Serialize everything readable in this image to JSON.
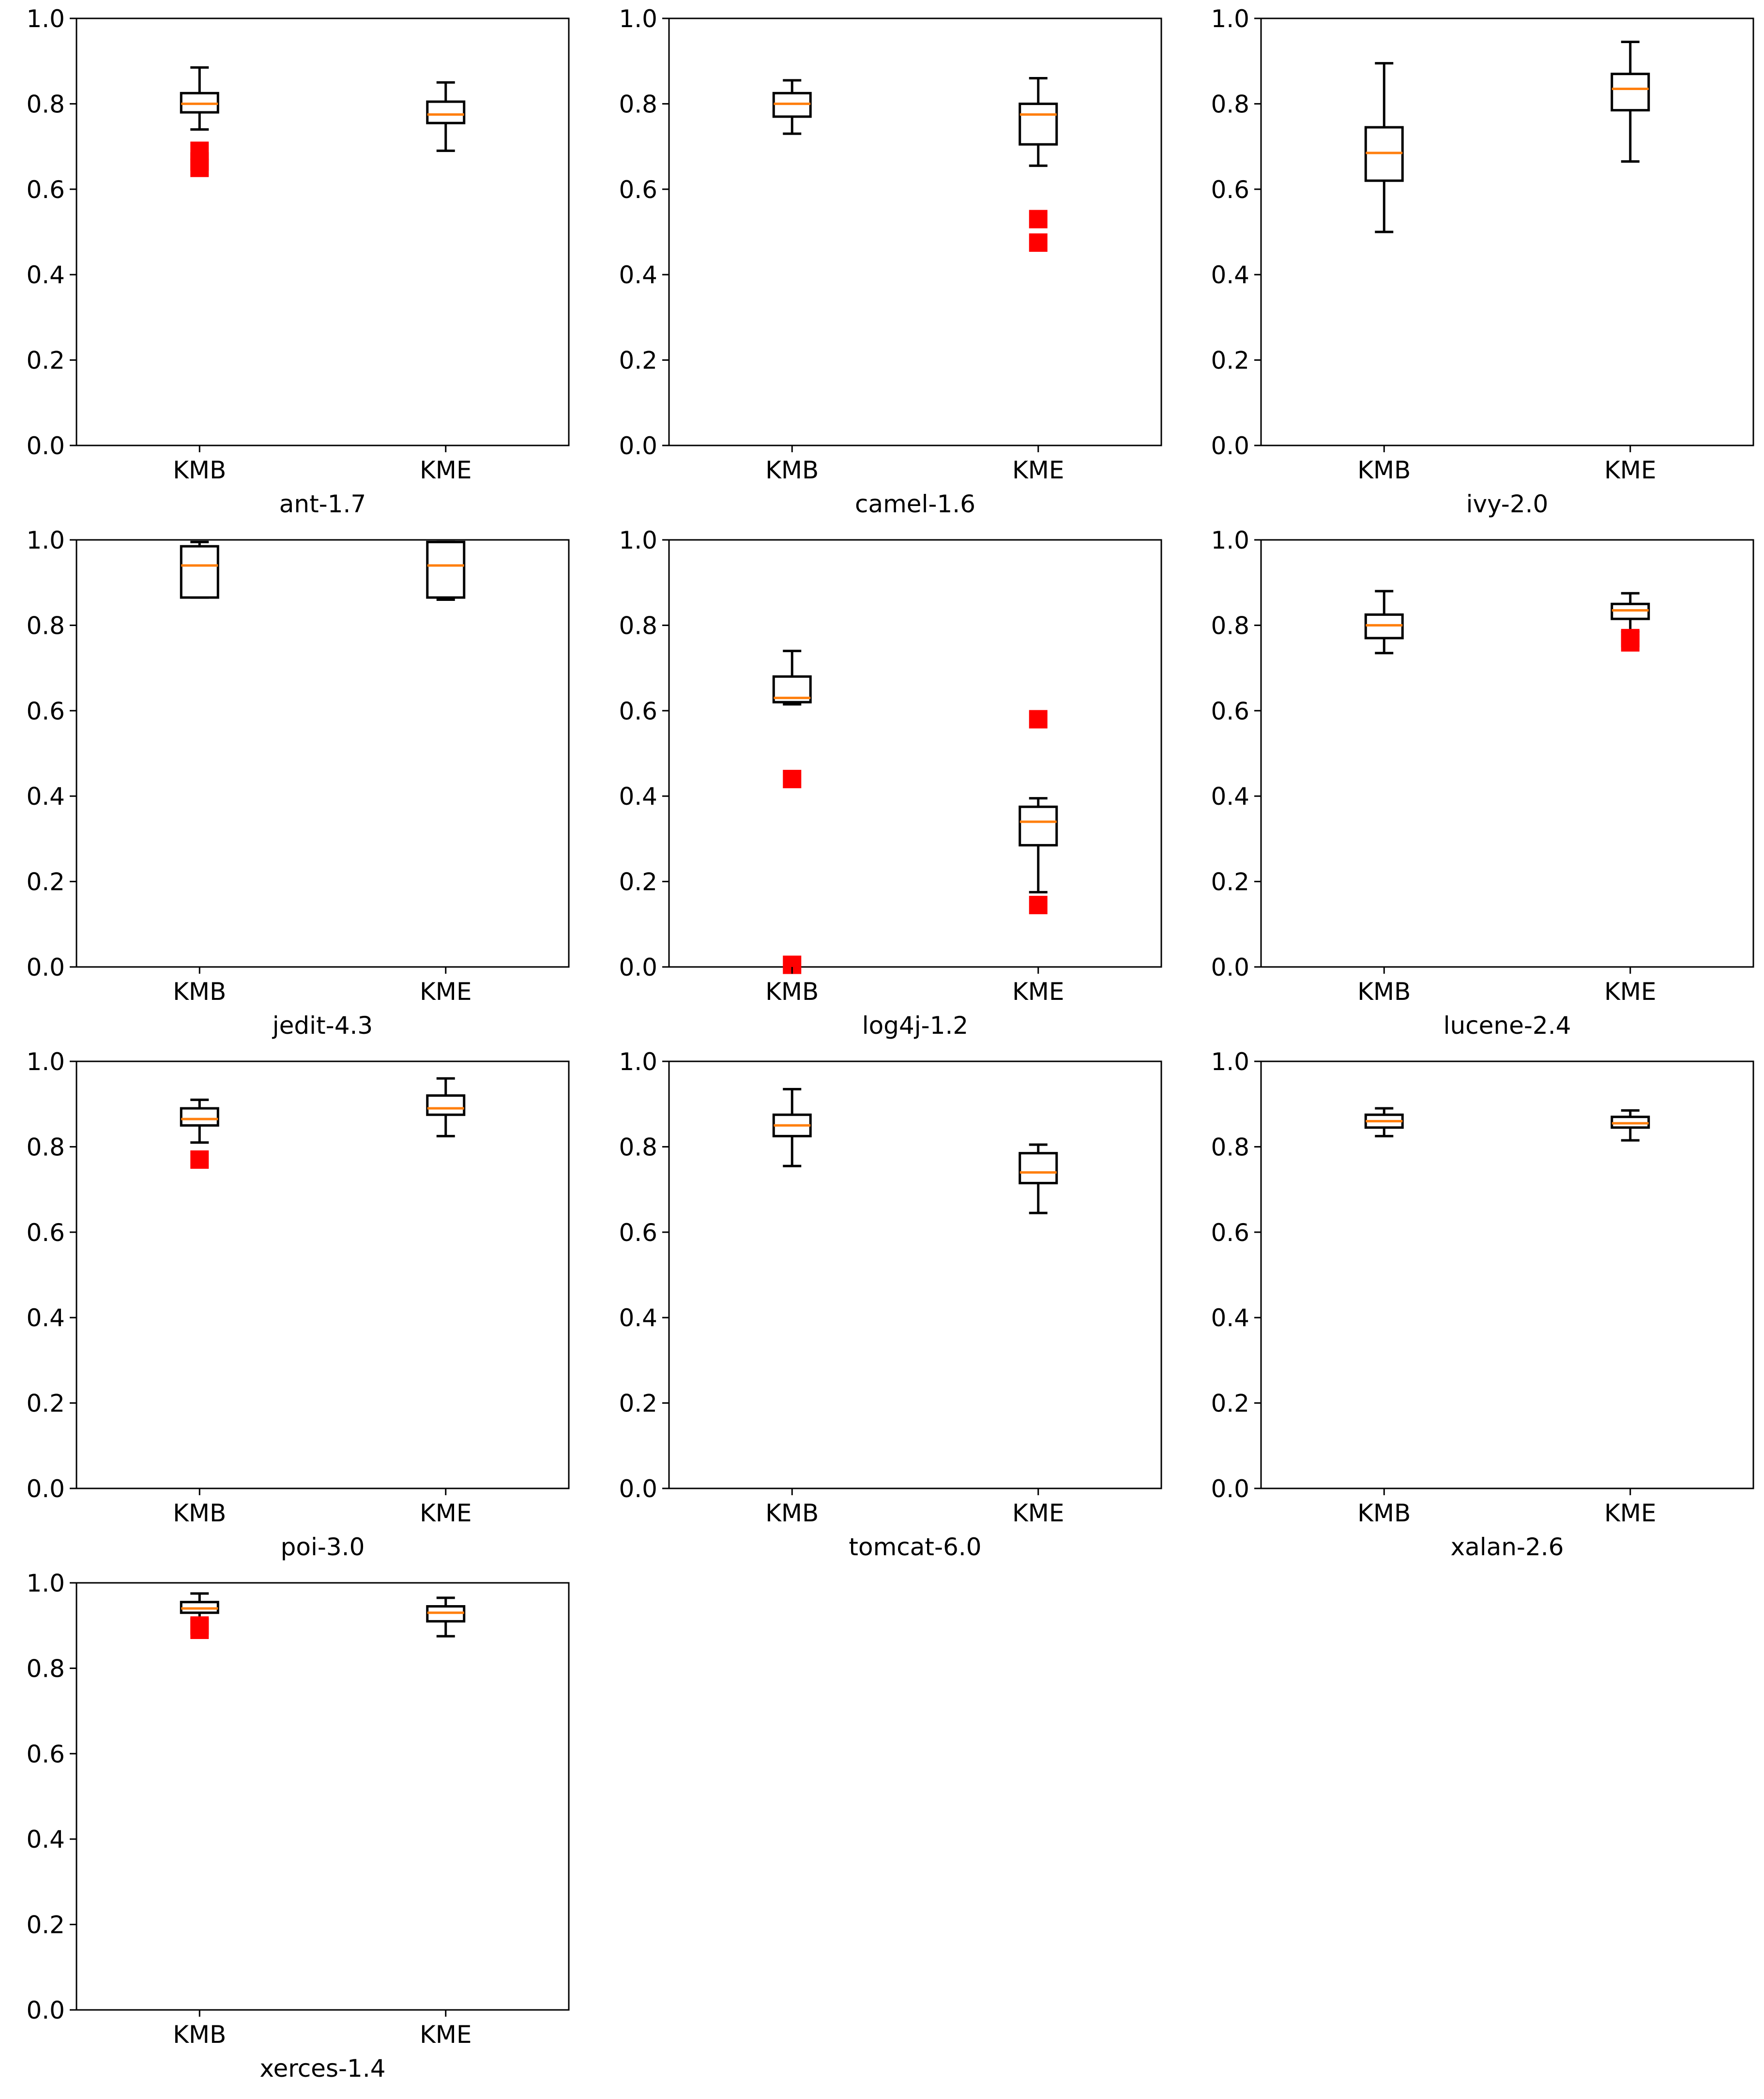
{
  "colors": {
    "box": "#000000",
    "median": "#ff7f0e",
    "outlier": "#ff0000",
    "frame": "#000000",
    "background": "#ffffff"
  },
  "chart_data": [
    {
      "type": "box",
      "title": "ant-1.7",
      "ylim": [
        0,
        1
      ],
      "yticks": [
        "0.0",
        "0.2",
        "0.4",
        "0.6",
        "0.8",
        "1.0"
      ],
      "categories": [
        "KMB",
        "KME"
      ],
      "boxes": [
        {
          "name": "KMB",
          "whislo": 0.74,
          "q1": 0.78,
          "med": 0.8,
          "q3": 0.825,
          "whishi": 0.885,
          "fliers": [
            0.69,
            0.665,
            0.65
          ]
        },
        {
          "name": "KME",
          "whislo": 0.69,
          "q1": 0.755,
          "med": 0.775,
          "q3": 0.805,
          "whishi": 0.85,
          "fliers": []
        }
      ]
    },
    {
      "type": "box",
      "title": "camel-1.6",
      "ylim": [
        0,
        1
      ],
      "yticks": [
        "0.0",
        "0.2",
        "0.4",
        "0.6",
        "0.8",
        "1.0"
      ],
      "categories": [
        "KMB",
        "KME"
      ],
      "boxes": [
        {
          "name": "KMB",
          "whislo": 0.73,
          "q1": 0.77,
          "med": 0.8,
          "q3": 0.825,
          "whishi": 0.855,
          "fliers": []
        },
        {
          "name": "KME",
          "whislo": 0.655,
          "q1": 0.705,
          "med": 0.775,
          "q3": 0.8,
          "whishi": 0.86,
          "fliers": [
            0.53,
            0.475
          ]
        }
      ]
    },
    {
      "type": "box",
      "title": "ivy-2.0",
      "ylim": [
        0,
        1
      ],
      "yticks": [
        "0.0",
        "0.2",
        "0.4",
        "0.6",
        "0.8",
        "1.0"
      ],
      "categories": [
        "KMB",
        "KME"
      ],
      "boxes": [
        {
          "name": "KMB",
          "whislo": 0.5,
          "q1": 0.62,
          "med": 0.685,
          "q3": 0.745,
          "whishi": 0.895,
          "fliers": []
        },
        {
          "name": "KME",
          "whislo": 0.665,
          "q1": 0.785,
          "med": 0.835,
          "q3": 0.87,
          "whishi": 0.945,
          "fliers": []
        }
      ]
    },
    {
      "type": "box",
      "title": "jedit-4.3",
      "ylim": [
        0,
        1
      ],
      "yticks": [
        "0.0",
        "0.2",
        "0.4",
        "0.6",
        "0.8",
        "1.0"
      ],
      "categories": [
        "KMB",
        "KME"
      ],
      "boxes": [
        {
          "name": "KMB",
          "whislo": 0.865,
          "q1": 0.865,
          "med": 0.94,
          "q3": 0.985,
          "whishi": 0.995,
          "fliers": []
        },
        {
          "name": "KME",
          "whislo": 0.86,
          "q1": 0.865,
          "med": 0.94,
          "q3": 0.995,
          "whishi": 0.995,
          "fliers": []
        }
      ]
    },
    {
      "type": "box",
      "title": "log4j-1.2",
      "ylim": [
        0,
        1
      ],
      "yticks": [
        "0.0",
        "0.2",
        "0.4",
        "0.6",
        "0.8",
        "1.0"
      ],
      "categories": [
        "KMB",
        "KME"
      ],
      "boxes": [
        {
          "name": "KMB",
          "whislo": 0.615,
          "q1": 0.62,
          "med": 0.63,
          "q3": 0.68,
          "whishi": 0.74,
          "fliers": [
            0.44,
            0.005
          ]
        },
        {
          "name": "KME",
          "whislo": 0.175,
          "q1": 0.285,
          "med": 0.34,
          "q3": 0.375,
          "whishi": 0.395,
          "fliers": [
            0.58,
            0.145
          ]
        }
      ]
    },
    {
      "type": "box",
      "title": "lucene-2.4",
      "ylim": [
        0,
        1
      ],
      "yticks": [
        "0.0",
        "0.2",
        "0.4",
        "0.6",
        "0.8",
        "1.0"
      ],
      "categories": [
        "KMB",
        "KME"
      ],
      "boxes": [
        {
          "name": "KMB",
          "whislo": 0.735,
          "q1": 0.77,
          "med": 0.8,
          "q3": 0.825,
          "whishi": 0.88,
          "fliers": []
        },
        {
          "name": "KME",
          "whislo": 0.785,
          "q1": 0.815,
          "med": 0.835,
          "q3": 0.85,
          "whishi": 0.875,
          "fliers": [
            0.77,
            0.76
          ]
        }
      ]
    },
    {
      "type": "box",
      "title": "poi-3.0",
      "ylim": [
        0,
        1
      ],
      "yticks": [
        "0.0",
        "0.2",
        "0.4",
        "0.6",
        "0.8",
        "1.0"
      ],
      "categories": [
        "KMB",
        "KME"
      ],
      "boxes": [
        {
          "name": "KMB",
          "whislo": 0.81,
          "q1": 0.85,
          "med": 0.865,
          "q3": 0.89,
          "whishi": 0.91,
          "fliers": [
            0.77
          ]
        },
        {
          "name": "KME",
          "whislo": 0.825,
          "q1": 0.875,
          "med": 0.89,
          "q3": 0.92,
          "whishi": 0.96,
          "fliers": []
        }
      ]
    },
    {
      "type": "box",
      "title": "tomcat-6.0",
      "ylim": [
        0,
        1
      ],
      "yticks": [
        "0.0",
        "0.2",
        "0.4",
        "0.6",
        "0.8",
        "1.0"
      ],
      "categories": [
        "KMB",
        "KME"
      ],
      "boxes": [
        {
          "name": "KMB",
          "whislo": 0.755,
          "q1": 0.825,
          "med": 0.85,
          "q3": 0.875,
          "whishi": 0.935,
          "fliers": []
        },
        {
          "name": "KME",
          "whislo": 0.645,
          "q1": 0.715,
          "med": 0.74,
          "q3": 0.785,
          "whishi": 0.805,
          "fliers": []
        }
      ]
    },
    {
      "type": "box",
      "title": "xalan-2.6",
      "ylim": [
        0,
        1
      ],
      "yticks": [
        "0.0",
        "0.2",
        "0.4",
        "0.6",
        "0.8",
        "1.0"
      ],
      "categories": [
        "KMB",
        "KME"
      ],
      "boxes": [
        {
          "name": "KMB",
          "whislo": 0.825,
          "q1": 0.845,
          "med": 0.86,
          "q3": 0.875,
          "whishi": 0.89,
          "fliers": []
        },
        {
          "name": "KME",
          "whislo": 0.815,
          "q1": 0.845,
          "med": 0.855,
          "q3": 0.87,
          "whishi": 0.885,
          "fliers": []
        }
      ]
    },
    {
      "type": "box",
      "title": "xerces-1.4",
      "ylim": [
        0,
        1
      ],
      "yticks": [
        "0.0",
        "0.2",
        "0.4",
        "0.6",
        "0.8",
        "1.0"
      ],
      "categories": [
        "KMB",
        "KME"
      ],
      "boxes": [
        {
          "name": "KMB",
          "whislo": 0.915,
          "q1": 0.93,
          "med": 0.94,
          "q3": 0.955,
          "whishi": 0.975,
          "fliers": [
            0.9,
            0.89
          ]
        },
        {
          "name": "KME",
          "whislo": 0.875,
          "q1": 0.91,
          "med": 0.93,
          "q3": 0.945,
          "whishi": 0.965,
          "fliers": []
        }
      ]
    }
  ]
}
